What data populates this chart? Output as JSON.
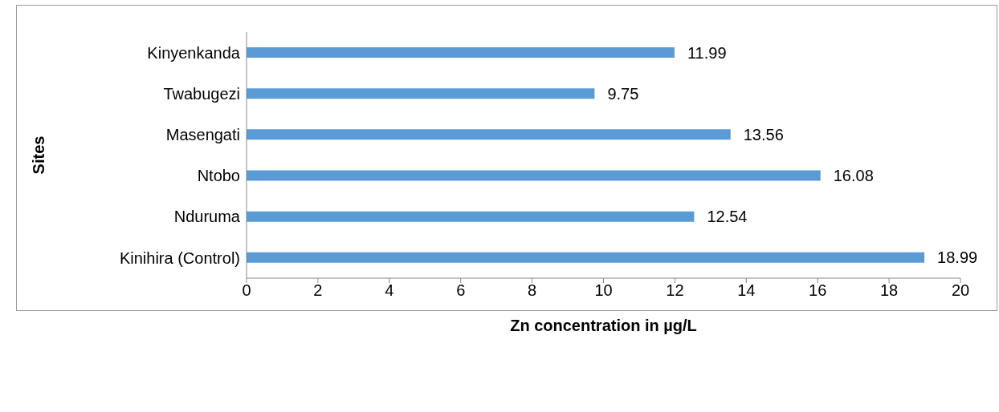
{
  "chart_data": {
    "type": "bar",
    "orientation": "horizontal",
    "xlabel": "Zn concentration in µg/L",
    "ylabel": "Sites",
    "categories": [
      "Kinyenkanda",
      "Twabugezi",
      "Masengati",
      "Ntobo",
      "Nduruma",
      "Kinihira (Control)"
    ],
    "values": [
      11.99,
      9.75,
      13.56,
      16.08,
      12.54,
      18.99
    ],
    "color": "#5b9bd5",
    "xlim": [
      0,
      20
    ],
    "xticks": [
      0,
      2,
      4,
      6,
      8,
      10,
      12,
      14,
      16,
      18,
      20
    ],
    "data_labels": true,
    "grid": false,
    "legend": false
  }
}
